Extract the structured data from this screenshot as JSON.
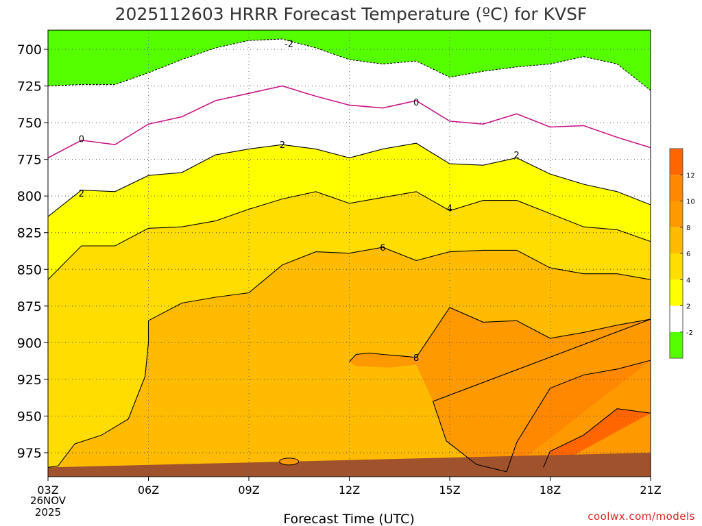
{
  "title": "2025112603 HRRR Forecast Temperature (ºC) for KVSF",
  "xlabel": "Forecast Time (UTC)",
  "credit": "coolwx.com/models",
  "colors": {
    "below_minus2": "#55ff00",
    "minus2_to_2": "#ffffff",
    "2_to_4": "#ffff00",
    "4_to_6": "#ffdd00",
    "6_to_8": "#ffbb00",
    "8_to_10": "#ff9900",
    "10_to_12": "#ff8800",
    "above_12": "#ff6600",
    "ground": "#a0522d",
    "freezing_line": "#c71585"
  },
  "chart_data": {
    "type": "time-height contour",
    "title": "2025112603 HRRR Forecast Temperature (ºC) for KVSF",
    "xlabel": "Forecast Time (UTC)",
    "ylabel": "",
    "units": "ºC",
    "x_ticks": [
      "03Z",
      "06Z",
      "09Z",
      "12Z",
      "15Z",
      "18Z",
      "21Z"
    ],
    "x_date_label": [
      "26NOV",
      "2025"
    ],
    "x_hours": [
      3,
      4,
      5,
      6,
      7,
      8,
      9,
      10,
      11,
      12,
      13,
      14,
      15,
      16,
      17,
      18,
      19,
      20,
      21
    ],
    "y_ticks": [
      700,
      725,
      750,
      775,
      800,
      825,
      850,
      875,
      900,
      925,
      950,
      975
    ],
    "ylim_hPa": [
      988,
      688
    ],
    "y_scale": "pressure (hPa), decreasing upward",
    "grid": true,
    "colorbar": {
      "ticks": [
        "12",
        "10",
        "8",
        "6",
        "4",
        "2",
        "-2"
      ],
      "bins": [
        -2,
        2,
        4,
        6,
        8,
        10,
        12
      ]
    },
    "contours": [
      {
        "label": "-2",
        "level": -2,
        "label_positions": [
          {
            "hour": 10.2,
            "hPa": 696
          }
        ],
        "hours": [
          3,
          4,
          5,
          6,
          7,
          8,
          9,
          10,
          11,
          12,
          13,
          14,
          15,
          16,
          17,
          18,
          19,
          20,
          21
        ],
        "hPa": [
          725,
          724,
          724,
          716,
          707,
          699,
          694,
          693,
          699,
          707,
          710,
          708,
          719,
          715,
          712,
          710,
          705,
          710,
          728
        ]
      },
      {
        "label": "0",
        "level": 0,
        "label_positions": [
          {
            "hour": 4,
            "hPa": 761
          },
          {
            "hour": 14,
            "hPa": 736
          }
        ],
        "hours": [
          3,
          4,
          5,
          6,
          7,
          8,
          9,
          10,
          11,
          12,
          13,
          14,
          15,
          16,
          17,
          18,
          19,
          20,
          21
        ],
        "hPa": [
          774,
          762,
          765,
          751,
          746,
          735,
          730,
          725,
          732,
          738,
          740,
          735,
          749,
          751,
          744,
          753,
          752,
          760,
          767
        ]
      },
      {
        "label": "2",
        "level": 2,
        "label_positions": [
          {
            "hour": 4,
            "hPa": 798
          },
          {
            "hour": 10,
            "hPa": 765
          },
          {
            "hour": 17,
            "hPa": 772
          }
        ],
        "hours": [
          3,
          4,
          5,
          6,
          7,
          8,
          9,
          10,
          11,
          12,
          13,
          14,
          15,
          16,
          17,
          18,
          19,
          20,
          21
        ],
        "hPa": [
          814,
          796,
          797,
          786,
          784,
          772,
          768,
          765,
          768,
          774,
          768,
          764,
          778,
          779,
          774,
          785,
          792,
          797,
          806
        ]
      },
      {
        "label": "4",
        "level": 4,
        "label_positions": [
          {
            "hour": 15,
            "hPa": 808
          }
        ],
        "hours": [
          3,
          4,
          5,
          6,
          7,
          8,
          9,
          10,
          11,
          12,
          13,
          14,
          15,
          16,
          17,
          18,
          19,
          20,
          21
        ],
        "hPa": [
          857,
          834,
          834,
          822,
          821,
          817,
          809,
          802,
          797,
          805,
          801,
          797,
          810,
          803,
          803,
          812,
          821,
          823,
          831
        ]
      },
      {
        "label": "6",
        "level": 6,
        "label_positions": [
          {
            "hour": 13,
            "hPa": 835
          }
        ],
        "hours": [
          6,
          7,
          8,
          9,
          10,
          11,
          12,
          13,
          14,
          15,
          16,
          17,
          18,
          19,
          20,
          21
        ],
        "hPa": [
          885,
          873,
          869,
          866,
          847,
          838,
          839,
          835,
          844,
          838,
          837,
          837,
          849,
          853,
          853,
          857
        ]
      },
      {
        "label": "8",
        "level": 8,
        "label_positions": [
          {
            "hour": 14,
            "hPa": 910
          }
        ],
        "hours": [
          12,
          12.2,
          12.6,
          13,
          13.5,
          14,
          14.5,
          15,
          16,
          17,
          18,
          19,
          20,
          21
        ],
        "hPa": [
          913,
          908,
          907,
          908,
          909,
          910,
          893,
          876,
          886,
          885,
          897,
          893,
          888,
          884
        ]
      },
      {
        "label": "10",
        "level": 10,
        "label_positions": [],
        "hours": [
          16.7,
          17,
          18,
          19,
          20,
          21
        ],
        "hPa": [
          988,
          968,
          931,
          922,
          918,
          912
        ]
      },
      {
        "label": "12",
        "level": 12,
        "label_positions": [],
        "hours": [
          17.8,
          18,
          19,
          20,
          21
        ],
        "hPa": [
          985,
          974,
          963,
          945,
          948
        ]
      }
    ],
    "surface_pressure": {
      "hours": [
        3,
        21
      ],
      "hPa": [
        985,
        975
      ]
    }
  }
}
